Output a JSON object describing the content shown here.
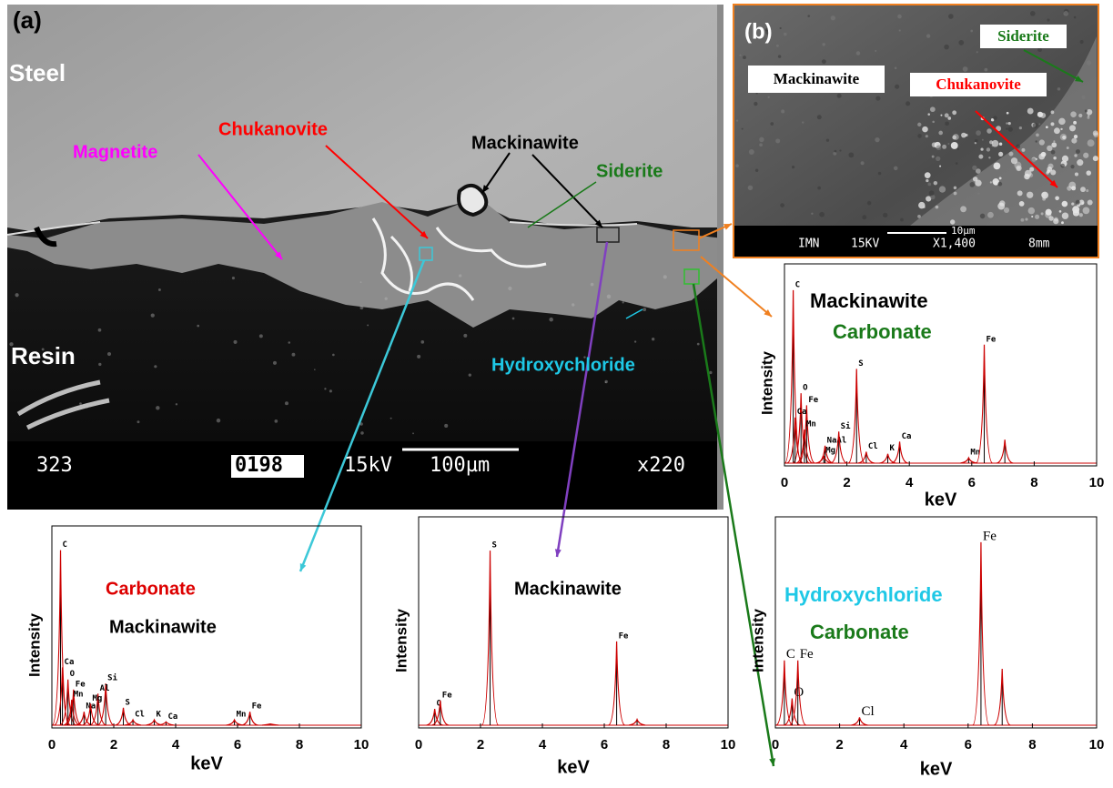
{
  "panel_a": {
    "tag": "(a)",
    "labels": [
      {
        "text": "Steel",
        "color": "#ffffff"
      },
      {
        "text": "Magnetite",
        "color": "#ff00ff"
      },
      {
        "text": "Chukanovite",
        "color": "#ff0000"
      },
      {
        "text": "Mackinawite",
        "color": "#000000"
      },
      {
        "text": "Siderite",
        "color": "#1a7a1a"
      },
      {
        "text": "Resin",
        "color": "#ffffff"
      },
      {
        "text": "Hydroxychloride",
        "color": "#1ec8e6"
      }
    ],
    "info_bar": [
      "323",
      "0198",
      "15kV",
      "100µm",
      "x220"
    ]
  },
  "panel_b": {
    "tag": "(b)",
    "labels": [
      {
        "text": "Mackinawite",
        "color": "#000000"
      },
      {
        "text": "Siderite",
        "color": "#1a7a1a"
      },
      {
        "text": "Chukanovite",
        "color": "#ff0000"
      }
    ],
    "info_bar": [
      "IMN",
      "15KV",
      "X1,400",
      "8mm",
      "10µm"
    ]
  },
  "chart_data": [
    {
      "type": "spectrum",
      "xlabel": "keV",
      "ylabel": "Intensity",
      "xlim": [
        0,
        10
      ],
      "xticks": [
        0,
        2,
        4,
        6,
        8,
        10
      ],
      "ylim": [
        0,
        100
      ],
      "color": "#cc0000",
      "x": [
        0.28,
        0.53,
        0.71,
        0.34,
        0.64,
        1.3,
        1.26,
        1.74,
        2.31,
        2.62,
        3.31,
        3.69,
        5.9,
        6.4,
        7.06
      ],
      "values": [
        87,
        36,
        30,
        24,
        18,
        10,
        5,
        17,
        48,
        7,
        6,
        12,
        4,
        60,
        13
      ],
      "labels": [
        "C",
        "O",
        "Fe",
        "Ca",
        "Mn",
        "NaAl",
        "Mg",
        "Si",
        "S",
        "Cl",
        "K",
        "Ca",
        "Mn",
        "Fe",
        null
      ],
      "annotations": [
        {
          "text": "Mackinawite",
          "color": "#000000"
        },
        {
          "text": "Carbonate",
          "color": "#1a7a1a"
        }
      ]
    },
    {
      "type": "spectrum",
      "xlabel": "keV",
      "ylabel": "Intensity",
      "xlim": [
        0,
        10
      ],
      "xticks": [
        0,
        2,
        4,
        6,
        8,
        10
      ],
      "ylim": [
        0,
        100
      ],
      "color": "#cc0000",
      "x": [
        0.28,
        0.34,
        0.52,
        0.7,
        0.64,
        1.04,
        1.74,
        1.49,
        1.25,
        2.31,
        2.62,
        3.31,
        3.69,
        5.9,
        6.4,
        7.06
      ],
      "values": [
        88,
        30,
        24,
        19,
        14,
        8,
        22,
        17,
        12,
        10,
        4,
        4,
        3,
        4,
        8,
        2
      ],
      "labels": [
        "C",
        "Ca",
        "O",
        "Fe",
        "Mn",
        "Na",
        "Si",
        "Al",
        "Mg",
        "S",
        "Cl",
        "K",
        "Ca",
        "Mn",
        "Fe",
        null
      ],
      "annotations": [
        {
          "text": "Carbonate",
          "color": "#dd0000"
        },
        {
          "text": "Mackinawite",
          "color": "#000000"
        }
      ]
    },
    {
      "type": "spectrum",
      "xlabel": "keV",
      "ylabel": "Intensity",
      "xlim": [
        0,
        10
      ],
      "xticks": [
        0,
        2,
        4,
        6,
        8,
        10
      ],
      "ylim": [
        0,
        100
      ],
      "color": "#cc0000",
      "x": [
        0.52,
        0.7,
        2.31,
        6.4,
        7.06
      ],
      "values": [
        9,
        13,
        84,
        41,
        4
      ],
      "labels": [
        "O",
        "Fe",
        "S",
        "Fe",
        null
      ],
      "annotations": [
        {
          "text": "Mackinawite",
          "color": "#000000"
        }
      ]
    },
    {
      "type": "spectrum",
      "xlabel": "keV",
      "ylabel": "Intensity",
      "xlim": [
        0,
        10
      ],
      "xticks": [
        0,
        2,
        4,
        6,
        8,
        10
      ],
      "ylim": [
        0,
        100
      ],
      "color": "#cc0000",
      "x": [
        0.28,
        0.52,
        0.7,
        2.62,
        6.4,
        7.06
      ],
      "values": [
        32,
        14,
        32,
        5,
        88,
        28
      ],
      "labels": [
        "C",
        "O",
        "Fe",
        "Cl",
        "Fe",
        null
      ],
      "annotations": [
        {
          "text": "Hydroxychloride",
          "color": "#1ec8e6"
        },
        {
          "text": "Carbonate",
          "color": "#1a7a1a"
        }
      ]
    }
  ]
}
